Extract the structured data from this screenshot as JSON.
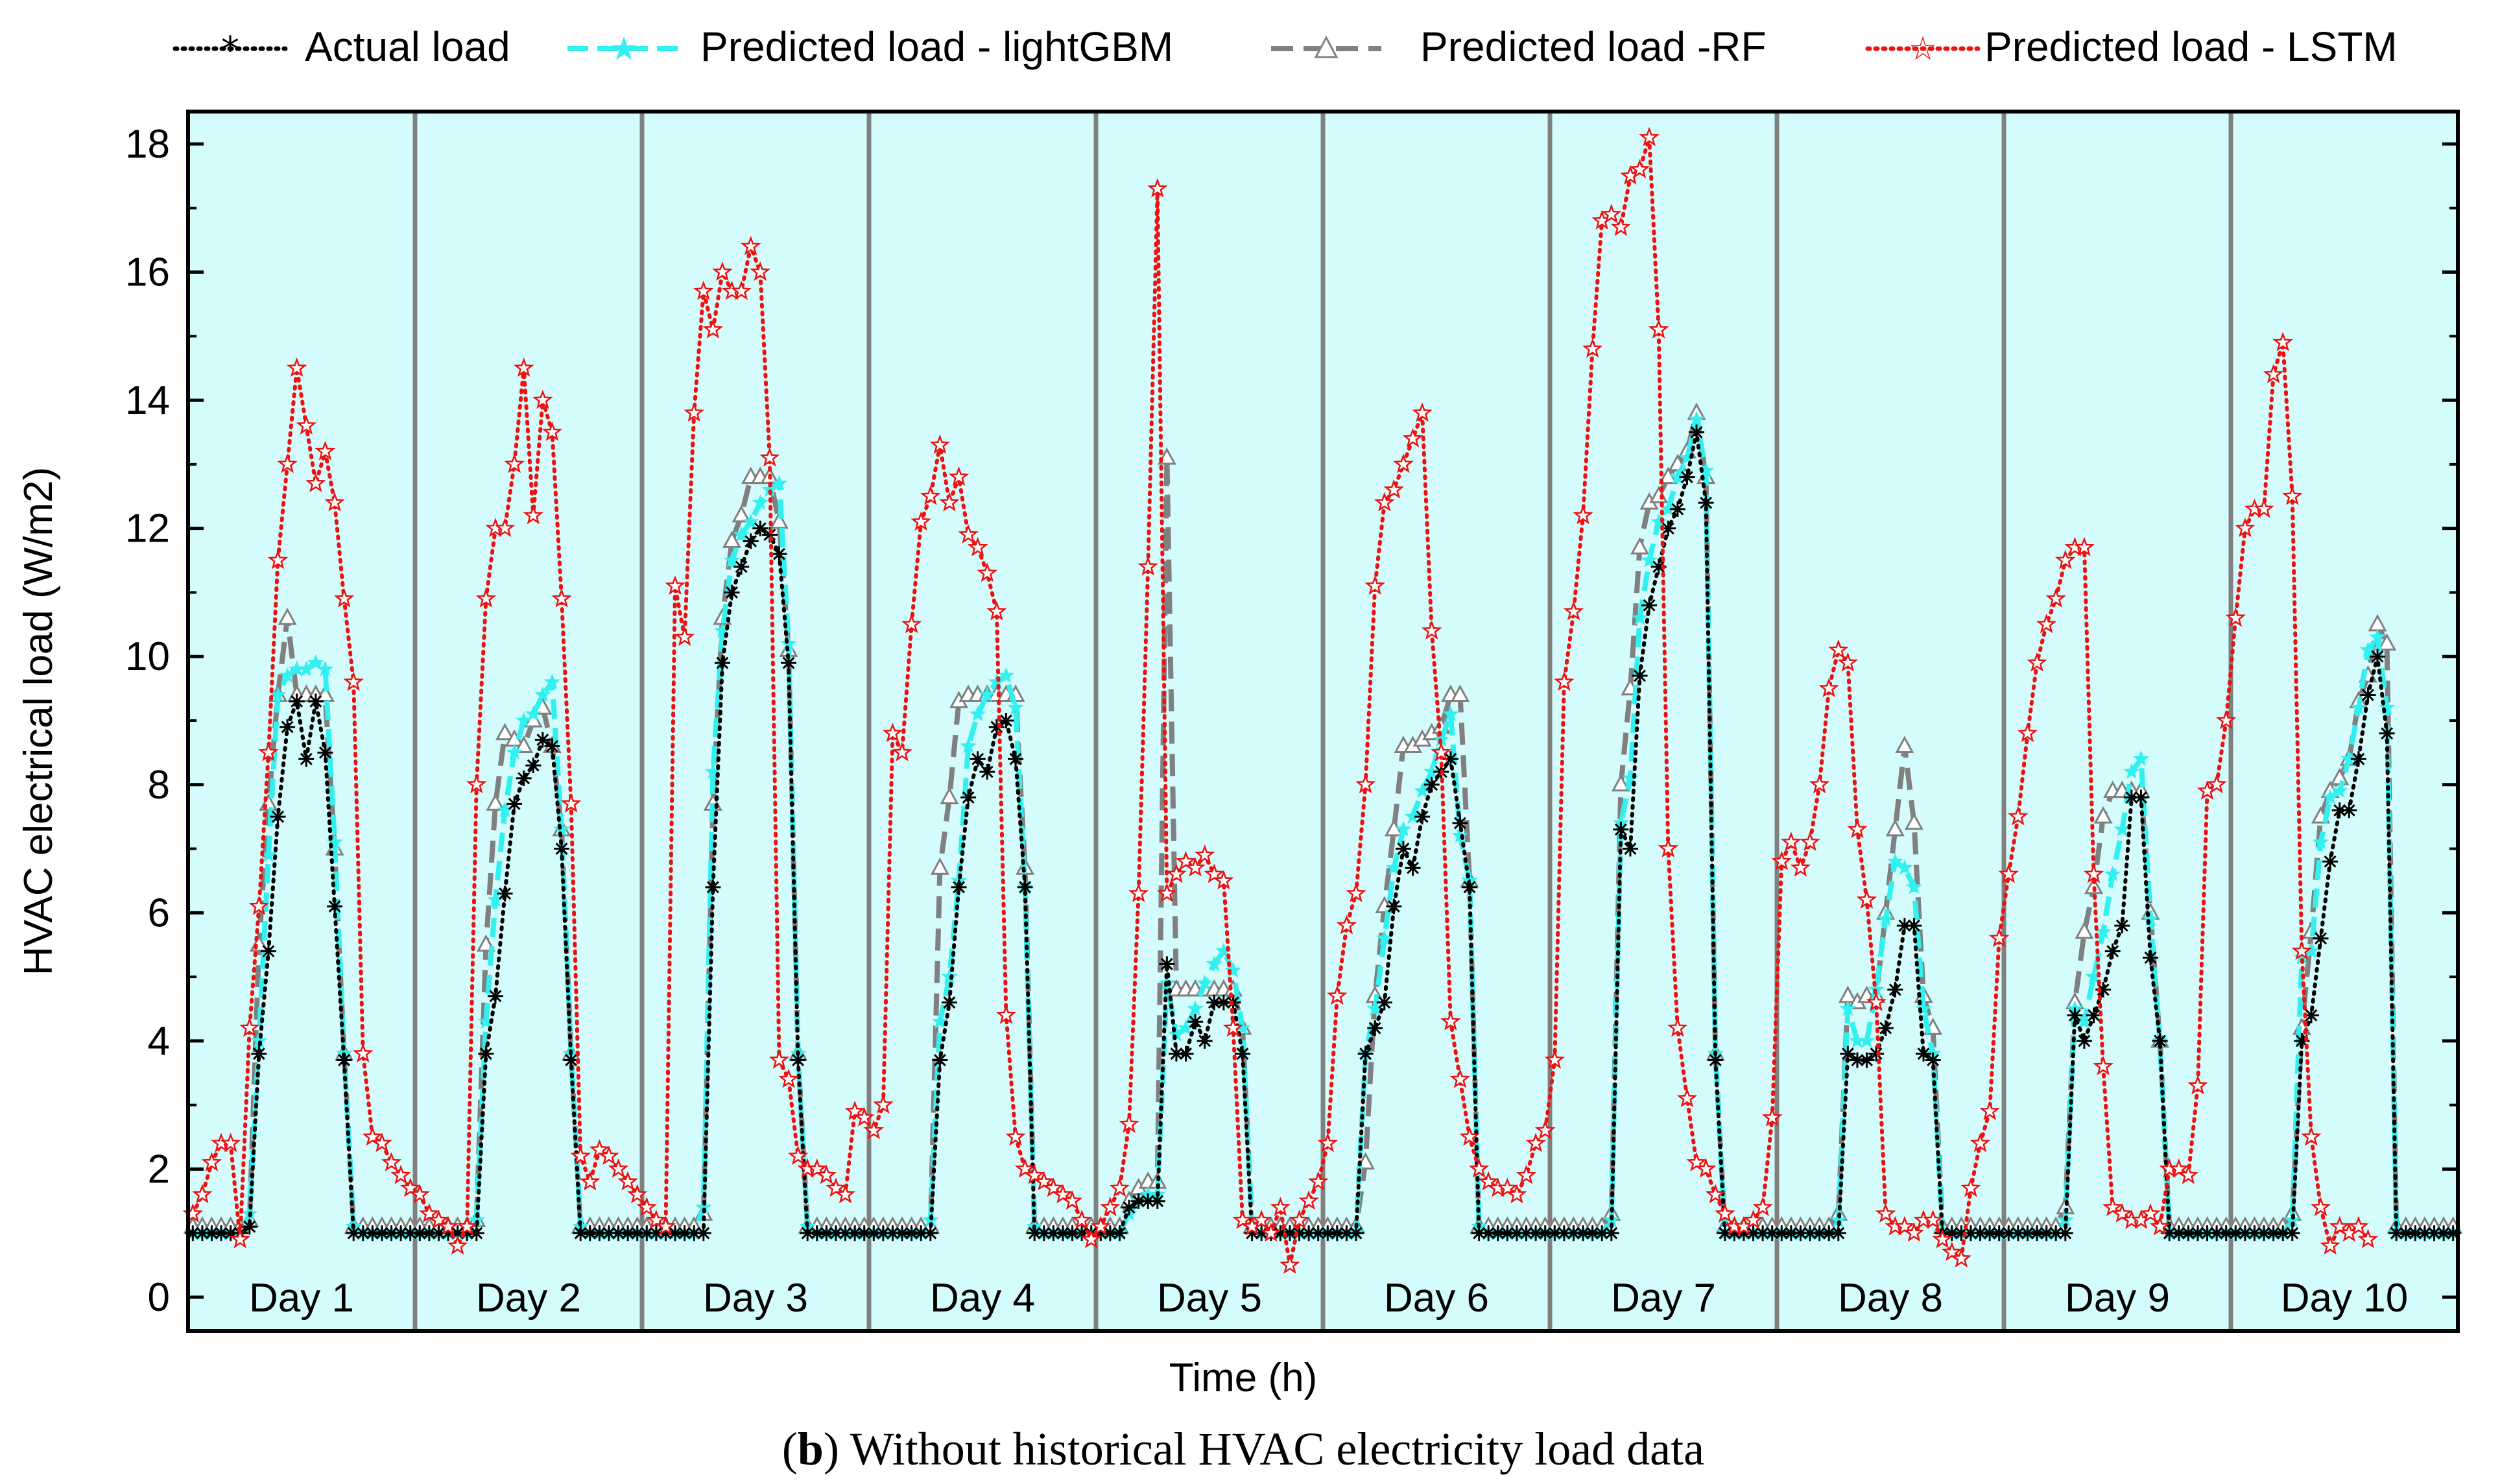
{
  "chart_data": {
    "type": "line",
    "title": "",
    "xlabel": "Time (h)",
    "ylabel": "HVAC electrical load (W/m2)",
    "ylim": [
      0,
      18
    ],
    "yticks": [
      0,
      2,
      4,
      6,
      8,
      10,
      12,
      14,
      16,
      18
    ],
    "hours_per_day": 24,
    "days": [
      "Day 1",
      "Day 2",
      "Day 3",
      "Day 4",
      "Day 5",
      "Day 6",
      "Day 7",
      "Day 8",
      "Day 9",
      "Day 10"
    ],
    "legend_position": "top",
    "background_color": "#d4fcfc",
    "divider_color": "#808080",
    "caption": {
      "letter": "b",
      "open": "(",
      "close": ")",
      "text": " Without historical HVAC electricity load data"
    },
    "series": [
      {
        "name": "Actual load",
        "color": "#000000",
        "marker": "asterisk",
        "values": [
          1,
          1,
          1,
          1,
          1,
          1,
          1.1,
          3.8,
          5.4,
          7.5,
          8.9,
          9.3,
          8.4,
          9.3,
          8.5,
          6.1,
          3.7,
          1,
          1,
          1,
          1,
          1,
          1,
          1,
          1,
          1,
          1,
          1,
          1,
          1,
          1,
          3.8,
          4.7,
          6.3,
          7.7,
          8.1,
          8.3,
          8.7,
          8.6,
          7,
          3.7,
          1,
          1,
          1,
          1,
          1,
          1,
          1,
          1,
          1,
          1,
          1,
          1,
          1,
          1,
          6.4,
          9.9,
          11,
          11.4,
          11.8,
          12,
          11.9,
          11.6,
          9.9,
          3.7,
          1,
          1,
          1,
          1,
          1,
          1,
          1,
          1,
          1,
          1,
          1,
          1,
          1,
          1,
          3.7,
          4.6,
          6.4,
          7.8,
          8.4,
          8.2,
          8.9,
          9,
          8.4,
          6.4,
          1,
          1,
          1,
          1,
          1,
          1,
          1,
          1,
          1,
          1,
          1.4,
          1.5,
          1.5,
          1.5,
          5.2,
          3.8,
          3.8,
          4.3,
          4,
          4.6,
          4.6,
          4.6,
          3.8,
          1,
          1,
          1,
          1,
          1,
          1,
          1,
          1,
          1,
          1,
          1,
          1,
          3.8,
          4.2,
          4.6,
          6.1,
          7,
          6.7,
          7.5,
          8,
          8.2,
          8.4,
          7.4,
          6.4,
          1,
          1,
          1,
          1,
          1,
          1,
          1,
          1,
          1,
          1,
          1,
          1,
          1,
          1,
          1,
          7.3,
          7,
          9.7,
          10.8,
          11.4,
          12,
          12.3,
          12.8,
          13.5,
          12.4,
          3.7,
          1,
          1,
          1,
          1,
          1,
          1,
          1,
          1,
          1,
          1,
          1,
          1,
          1,
          3.8,
          3.7,
          3.7,
          3.8,
          4.2,
          4.8,
          5.8,
          5.8,
          3.8,
          3.7,
          1,
          1,
          1,
          1,
          1,
          1,
          1,
          1,
          1,
          1,
          1,
          1,
          1,
          1,
          4.4,
          4,
          4.4,
          4.8,
          5.4,
          5.8,
          7.8,
          7.8,
          5.3,
          4,
          1,
          1,
          1,
          1,
          1,
          1,
          1,
          1,
          1,
          1,
          1,
          1,
          1,
          1,
          4,
          4.4,
          5.6,
          6.8,
          7.6,
          7.6,
          8.4,
          9.4,
          10,
          8.8,
          1,
          1,
          1,
          1,
          1,
          1,
          1
        ]
      },
      {
        "name": "Predicted load - lightGBM",
        "color": "#33f0f0",
        "marker": "star",
        "values": [
          1,
          1,
          1,
          1,
          1,
          1,
          1.3,
          4,
          6.9,
          9.4,
          9.7,
          9.8,
          9.8,
          9.9,
          9.8,
          7.1,
          3.8,
          1.1,
          1,
          1,
          1,
          1,
          1,
          1,
          1,
          1,
          1,
          1,
          1,
          1,
          1.2,
          4.3,
          6.2,
          7.6,
          8.5,
          9,
          9.1,
          9.4,
          9.6,
          7.3,
          3.8,
          1.1,
          1,
          1,
          1,
          1,
          1,
          1,
          1,
          1,
          1,
          1,
          1,
          1,
          1.4,
          8.2,
          10.4,
          11.5,
          11.9,
          12.1,
          12.4,
          12.6,
          12.7,
          10.2,
          3.8,
          1.1,
          1,
          1,
          1,
          1,
          1,
          1,
          1,
          1,
          1,
          1,
          1,
          1,
          1.2,
          4.3,
          5,
          6.5,
          8.6,
          9.1,
          9.4,
          9.6,
          9.7,
          9.2,
          6.4,
          1.1,
          1,
          1,
          1,
          1,
          1,
          1,
          1,
          1,
          1,
          1.3,
          1.5,
          1.6,
          1.6,
          4.9,
          4.1,
          4.2,
          4.5,
          4.9,
          5.2,
          5.4,
          5.1,
          4.2,
          1.1,
          1,
          1,
          1,
          1,
          1,
          1,
          1,
          1,
          1,
          1,
          1,
          3.8,
          4.5,
          5.6,
          6.7,
          7.3,
          7.5,
          7.9,
          8.2,
          8.7,
          9.1,
          7.2,
          6.5,
          1.1,
          1,
          1,
          1,
          1,
          1,
          1,
          1,
          1,
          1,
          1,
          1,
          1,
          1,
          1.2,
          7.4,
          8.1,
          10.6,
          11.5,
          12.1,
          12.3,
          12.8,
          13.1,
          13.7,
          12.9,
          3.8,
          1,
          1,
          1,
          1,
          1,
          1,
          1,
          1,
          1,
          1,
          1,
          1,
          1.2,
          4.5,
          4,
          4,
          4.8,
          5.9,
          6.8,
          6.7,
          6.4,
          4.5,
          3.8,
          1,
          1,
          1,
          1,
          1,
          1,
          1,
          1,
          1,
          1,
          1,
          1,
          1,
          1.2,
          4.5,
          4.3,
          5,
          5.7,
          6.6,
          7.3,
          8.2,
          8.4,
          5.9,
          4,
          1,
          1,
          1,
          1,
          1,
          1,
          1,
          1,
          1,
          1,
          1,
          1,
          1,
          1.2,
          5.3,
          5.4,
          7.1,
          7.8,
          7.9,
          8.4,
          9.2,
          10.1,
          10.3,
          9.2,
          1,
          1,
          1,
          1,
          1,
          1,
          1
        ]
      },
      {
        "name": "Predicted load -RF",
        "color": "#808080",
        "marker": "triangle",
        "values": [
          1.1,
          1.1,
          1.1,
          1.1,
          1.1,
          1.1,
          1.2,
          5.5,
          7.7,
          9.4,
          10.6,
          9.4,
          9.4,
          9.4,
          9.4,
          7,
          3.8,
          1.1,
          1.1,
          1.1,
          1.1,
          1.1,
          1.1,
          1.1,
          1.1,
          1.1,
          1.1,
          1.1,
          1.1,
          1.1,
          1.2,
          5.5,
          7.7,
          8.8,
          8.7,
          8.6,
          9,
          9.2,
          8.6,
          7.3,
          3.8,
          1.1,
          1.1,
          1.1,
          1.1,
          1.1,
          1.1,
          1.1,
          1.1,
          1.1,
          1.1,
          1.1,
          1.1,
          1.1,
          1.3,
          7.7,
          10.6,
          11.8,
          12.2,
          12.8,
          12.8,
          12.8,
          12.1,
          10.1,
          3.8,
          1.1,
          1.1,
          1.1,
          1.1,
          1.1,
          1.1,
          1.1,
          1.1,
          1.1,
          1.1,
          1.1,
          1.1,
          1.1,
          1.1,
          6.7,
          7.8,
          9.3,
          9.4,
          9.4,
          9.4,
          9.4,
          9.4,
          9.4,
          6.7,
          1.1,
          1.1,
          1.1,
          1.1,
          1.1,
          1.1,
          1.1,
          1.1,
          1.1,
          1.1,
          1.5,
          1.7,
          1.8,
          1.8,
          13.1,
          4.8,
          4.8,
          4.8,
          4.8,
          4.8,
          4.8,
          4.8,
          4.2,
          1.1,
          1.1,
          1.1,
          1.1,
          1.1,
          1.1,
          1.1,
          1.1,
          1.1,
          1.1,
          1.1,
          1.1,
          2.1,
          4.7,
          6.1,
          7.3,
          8.6,
          8.6,
          8.7,
          8.8,
          8.9,
          9.4,
          9.4,
          6.5,
          1.1,
          1.1,
          1.1,
          1.1,
          1.1,
          1.1,
          1.1,
          1.1,
          1.1,
          1.1,
          1.1,
          1.1,
          1.1,
          1.1,
          1.3,
          8,
          9.5,
          11.7,
          12.4,
          12.5,
          12.8,
          13,
          13.2,
          13.8,
          12.8,
          3.8,
          1.1,
          1.1,
          1.1,
          1.1,
          1.1,
          1.1,
          1.1,
          1.1,
          1.1,
          1.1,
          1.1,
          1.1,
          1.3,
          4.7,
          4.6,
          4.7,
          4.7,
          6,
          7.3,
          8.6,
          7.4,
          4.7,
          4.2,
          1.1,
          1.1,
          1.1,
          1.1,
          1.1,
          1.1,
          1.1,
          1.1,
          1.1,
          1.1,
          1.1,
          1.1,
          1.1,
          1.4,
          4.6,
          5.7,
          6.4,
          7.5,
          7.9,
          7.9,
          7.9,
          7.9,
          6,
          4,
          1.1,
          1.1,
          1.1,
          1.1,
          1.1,
          1.1,
          1.1,
          1.1,
          1.1,
          1.1,
          1.1,
          1.1,
          1.1,
          1.3,
          4.2,
          5.7,
          7.5,
          7.9,
          8.1,
          8.4,
          9.3,
          9.7,
          10.5,
          10.2,
          1.1,
          1.1,
          1.1,
          1.1,
          1.1,
          1.1,
          1.1
        ]
      },
      {
        "name": "Predicted load - LSTM",
        "color": "#ee1111",
        "marker": "star-outline",
        "values": [
          1.3,
          1.6,
          2.1,
          2.4,
          2.4,
          0.9,
          4.2,
          6.1,
          8.5,
          11.5,
          13,
          14.5,
          13.6,
          12.7,
          13.2,
          12.4,
          10.9,
          9.6,
          3.8,
          2.5,
          2.4,
          2.1,
          1.9,
          1.7,
          1.6,
          1.3,
          1.2,
          1.1,
          0.8,
          1.1,
          8,
          10.9,
          12,
          12,
          13,
          14.5,
          12.2,
          14,
          13.5,
          10.9,
          7.7,
          2.2,
          1.8,
          2.3,
          2.2,
          2,
          1.8,
          1.6,
          1.4,
          1.2,
          1.1,
          11.1,
          10.3,
          13.8,
          15.7,
          15.1,
          16,
          15.7,
          15.7,
          16.4,
          16,
          13.1,
          3.7,
          3.4,
          2.2,
          2,
          2,
          1.9,
          1.7,
          1.6,
          2.9,
          2.8,
          2.6,
          3,
          8.8,
          8.5,
          10.5,
          12.1,
          12.5,
          13.3,
          12.4,
          12.8,
          11.9,
          11.7,
          11.3,
          10.7,
          4.4,
          2.5,
          2,
          1.9,
          1.8,
          1.7,
          1.6,
          1.5,
          1.2,
          0.9,
          1.1,
          1.4,
          1.7,
          2.7,
          6.3,
          11.4,
          17.3,
          6.3,
          6.6,
          6.8,
          6.7,
          6.9,
          6.6,
          6.5,
          4.2,
          1.2,
          1.1,
          1.2,
          1,
          1.4,
          0.5,
          1.2,
          1.5,
          1.8,
          2.4,
          4.7,
          5.8,
          6.3,
          8,
          11.1,
          12.4,
          12.6,
          13,
          13.4,
          13.8,
          10.4,
          8.5,
          4.3,
          3.4,
          2.5,
          2,
          1.8,
          1.7,
          1.7,
          1.6,
          1.9,
          2.4,
          2.6,
          3.7,
          9.6,
          10.7,
          12.2,
          14.8,
          16.8,
          16.9,
          16.7,
          17.5,
          17.6,
          18.1,
          15.1,
          7,
          4.2,
          3.1,
          2.1,
          2,
          1.6,
          1.3,
          1.1,
          1.1,
          1.2,
          1.4,
          2.8,
          6.8,
          7.1,
          6.7,
          7.1,
          8,
          9.5,
          10.1,
          9.9,
          7.3,
          6.2,
          4.6,
          1.3,
          1.1,
          1.1,
          1,
          1.2,
          1.2,
          0.9,
          0.7,
          0.6,
          1.7,
          2.4,
          2.9,
          5.6,
          6.6,
          7.5,
          8.8,
          9.9,
          10.5,
          10.9,
          11.5,
          11.7,
          11.7,
          6.6,
          3.6,
          1.4,
          1.3,
          1.2,
          1.2,
          1.3,
          1.1,
          2,
          2,
          1.9,
          3.3,
          7.9,
          8,
          9,
          10.6,
          12,
          12.3,
          12.3,
          14.4,
          14.9,
          12.5,
          5.4,
          2.5,
          1.4,
          0.8,
          1.1,
          1,
          1.1,
          0.9
        ]
      }
    ]
  }
}
